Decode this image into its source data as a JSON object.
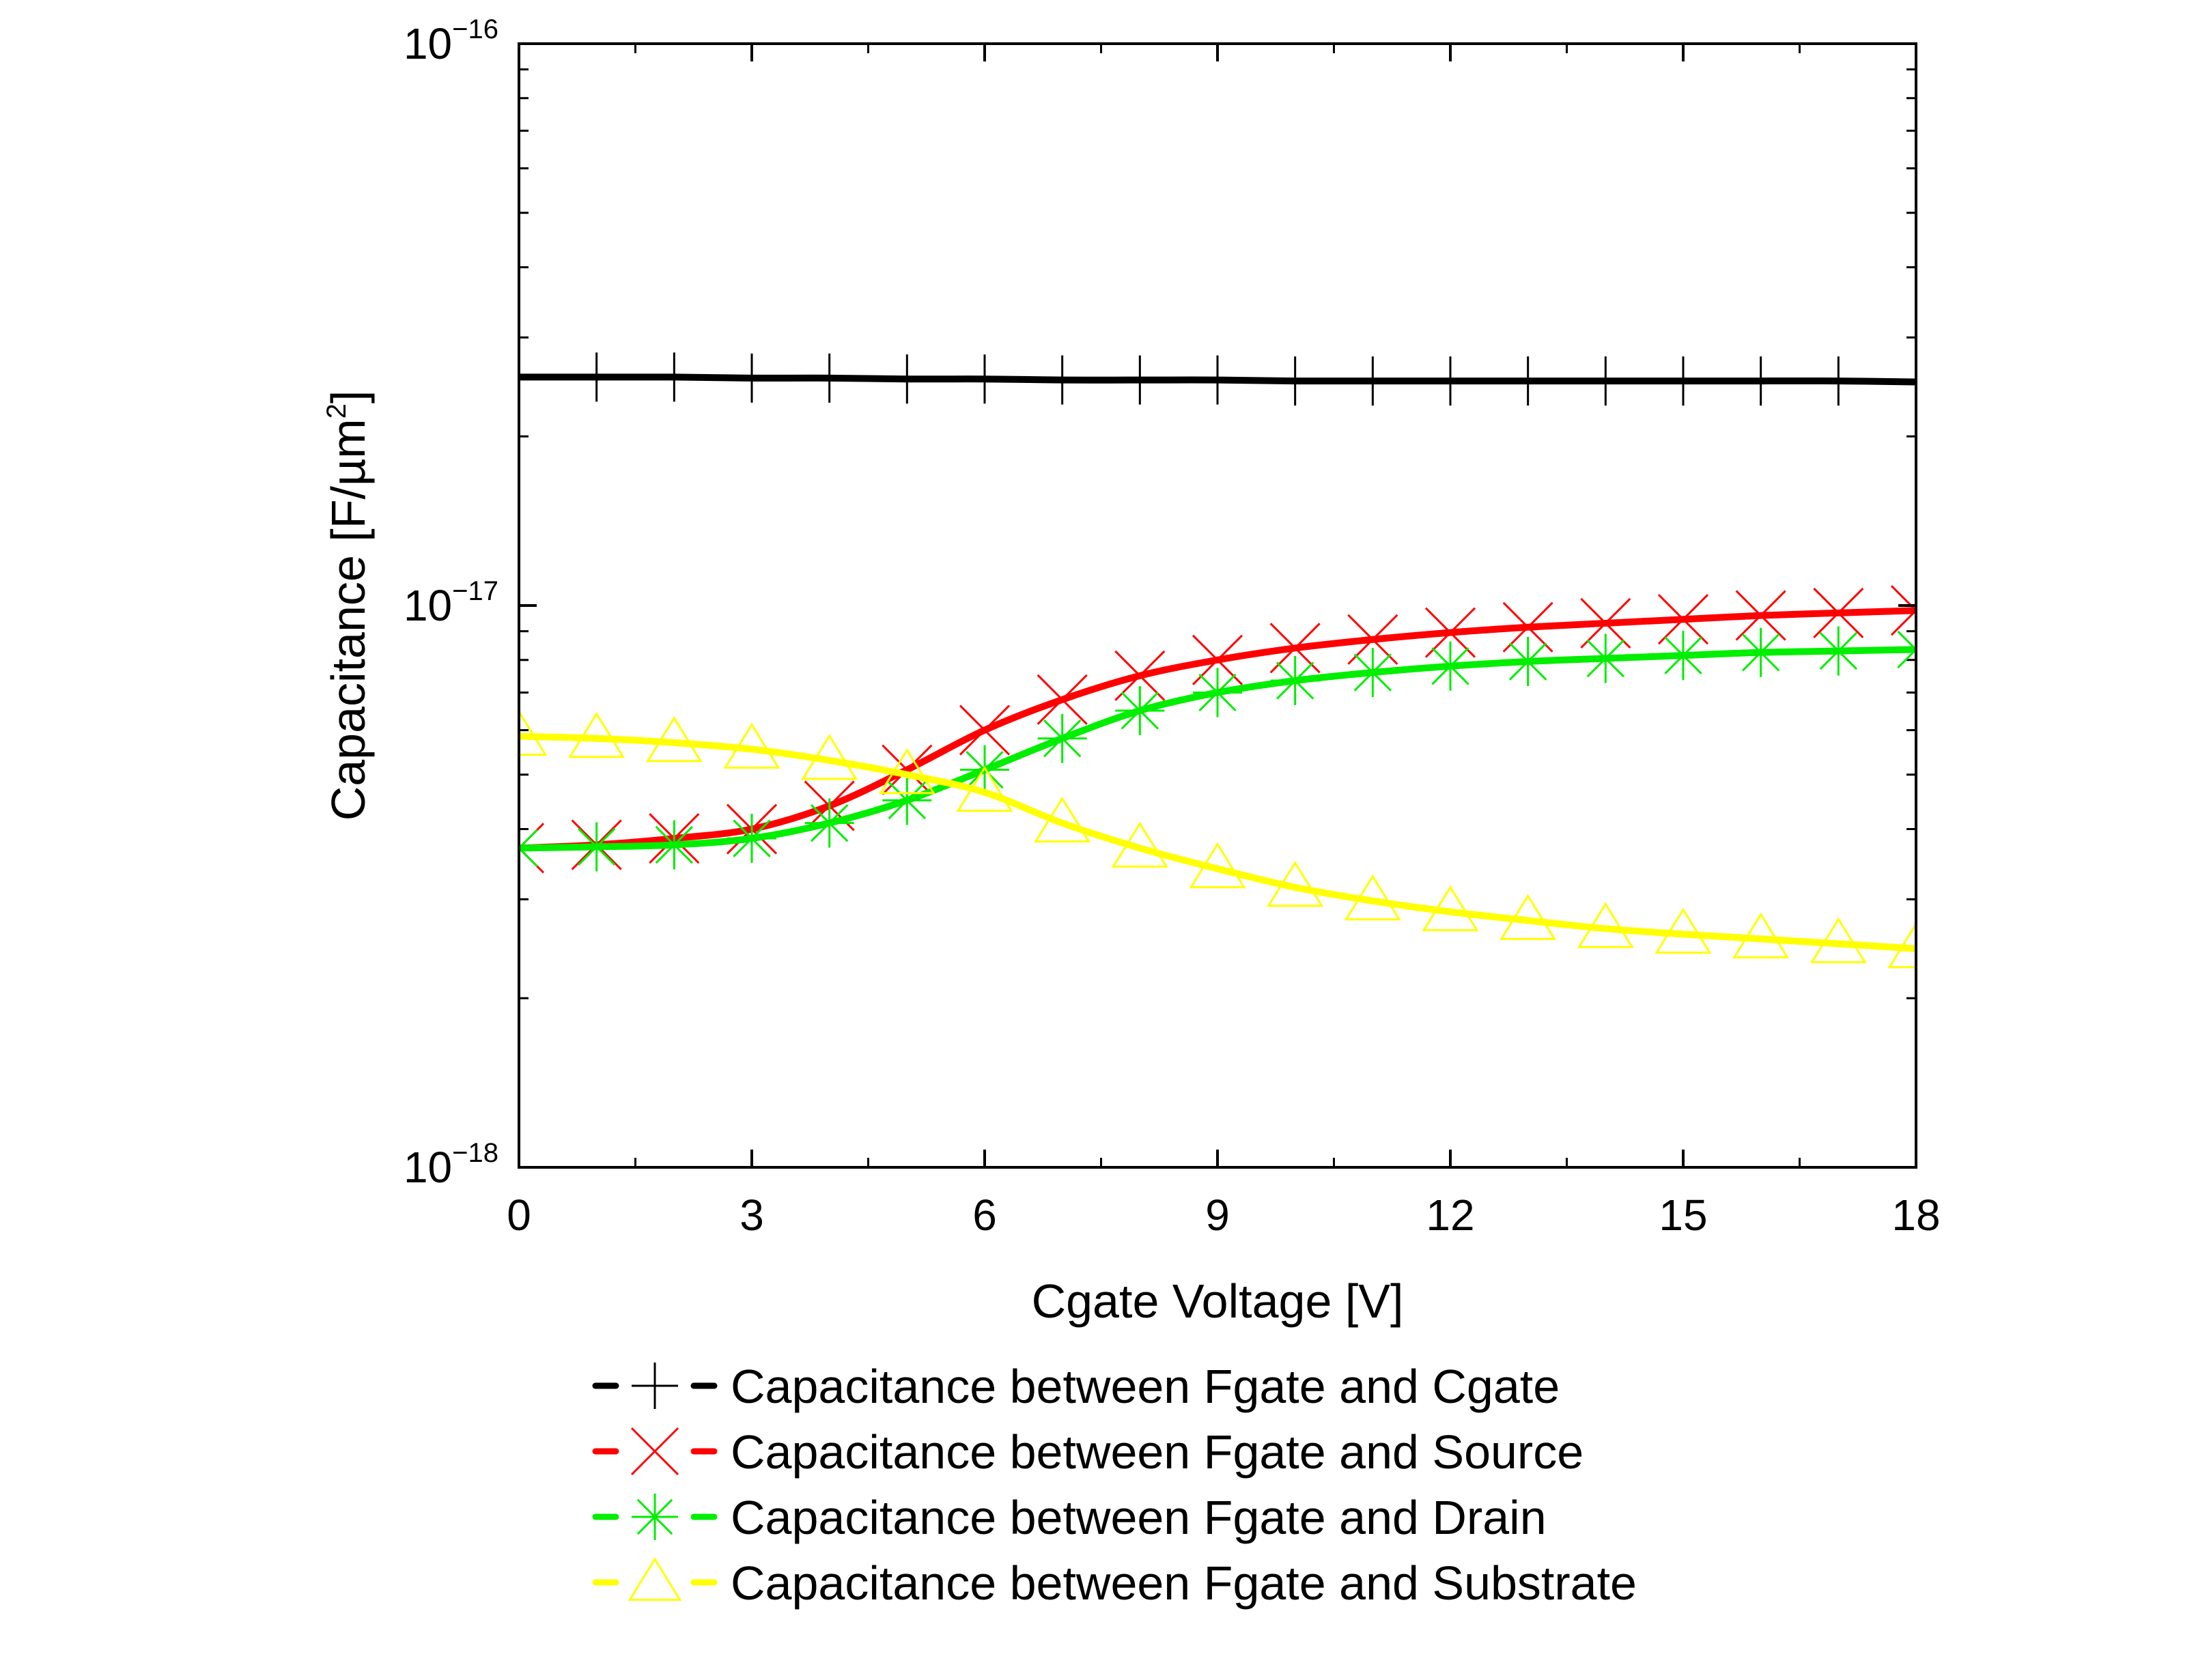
{
  "chart_data": {
    "type": "line",
    "xlabel": "Cgate Voltage [V]",
    "ylabel": {
      "text": "Capacitance [F/µm",
      "sup": "2",
      "close": "]"
    },
    "xlim": [
      0,
      18
    ],
    "ylim": [
      1e-18,
      1e-16
    ],
    "yscale": "log",
    "x_ticks": [
      "0",
      "3",
      "6",
      "9",
      "12",
      "15",
      "18"
    ],
    "y_ticks": [
      {
        "value": 1e-16,
        "base": "10",
        "exp": "−16"
      },
      {
        "value": 1e-17,
        "base": "10",
        "exp": "−17"
      },
      {
        "value": 1e-18,
        "base": "10",
        "exp": "−18"
      }
    ],
    "grid": false,
    "legend_placement": "bottom (below plot)",
    "x": [
      0,
      1,
      2,
      3,
      4,
      5,
      6,
      7,
      8,
      9,
      10,
      11,
      12,
      13,
      14,
      15,
      16,
      17,
      18
    ],
    "series": [
      {
        "name": "Capacitance between Fgate and Cgate",
        "color": "#000000",
        "marker": "plus",
        "values": [
          2.55e-17,
          2.55e-17,
          2.55e-17,
          2.54e-17,
          2.54e-17,
          2.53e-17,
          2.53e-17,
          2.52e-17,
          2.52e-17,
          2.52e-17,
          2.51e-17,
          2.51e-17,
          2.51e-17,
          2.51e-17,
          2.51e-17,
          2.51e-17,
          2.51e-17,
          2.51e-17,
          2.5e-17
        ]
      },
      {
        "name": "Capacitance between Fgate and Source",
        "color": "#ff0000",
        "marker": "x",
        "values": [
          3.7e-18,
          3.75e-18,
          3.85e-18,
          4e-18,
          4.4e-18,
          5.1e-18,
          6e-18,
          6.8e-18,
          7.5e-18,
          8e-18,
          8.4e-18,
          8.7e-18,
          8.95e-18,
          9.15e-18,
          9.3e-18,
          9.45e-18,
          9.6e-18,
          9.7e-18,
          9.8e-18
        ]
      },
      {
        "name": "Capacitance between Fgate and Drain",
        "color": "#00ee00",
        "marker": "asterisk",
        "values": [
          3.7e-18,
          3.72e-18,
          3.75e-18,
          3.85e-18,
          4.1e-18,
          4.5e-18,
          5.1e-18,
          5.8e-18,
          6.5e-18,
          7e-18,
          7.35e-18,
          7.6e-18,
          7.8e-18,
          7.95e-18,
          8.05e-18,
          8.15e-18,
          8.25e-18,
          8.3e-18,
          8.35e-18
        ]
      },
      {
        "name": "Capacitance between Fgate and Substrate",
        "color": "#ffff00",
        "marker": "triangle",
        "values": [
          5.85e-18,
          5.8e-18,
          5.7e-18,
          5.55e-18,
          5.3e-18,
          5e-18,
          4.65e-18,
          4.1e-18,
          3.7e-18,
          3.4e-18,
          3.15e-18,
          2.98e-18,
          2.85e-18,
          2.75e-18,
          2.66e-18,
          2.6e-18,
          2.55e-18,
          2.5e-18,
          2.45e-18
        ]
      }
    ]
  }
}
